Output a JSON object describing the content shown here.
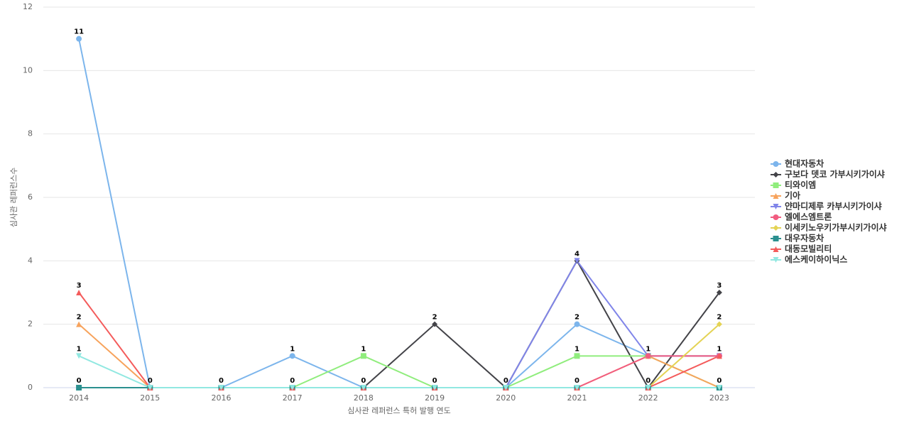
{
  "chart_data": {
    "type": "line",
    "x_label": "심사관 레퍼런스 특허 발행 연도",
    "y_label": "심사관 레퍼런스수",
    "categories": [
      "2014",
      "2015",
      "2016",
      "2017",
      "2018",
      "2019",
      "2020",
      "2021",
      "2022",
      "2023"
    ],
    "ylim": [
      0,
      12
    ],
    "yticks": [
      0,
      2,
      4,
      6,
      8,
      10,
      12
    ],
    "grid": true,
    "legend": "right",
    "series": [
      {
        "name": "현대자동차",
        "color": "#7cb5ec",
        "marker": "circle",
        "values": [
          11,
          0,
          0,
          1,
          0,
          0,
          0,
          2,
          1,
          1
        ]
      },
      {
        "name": "구보다 뎃코 가부시키가이샤",
        "color": "#434348",
        "marker": "diamond",
        "values": [
          null,
          null,
          null,
          null,
          0,
          2,
          0,
          4,
          0,
          3
        ]
      },
      {
        "name": "티와이엠",
        "color": "#90ed7d",
        "marker": "square",
        "values": [
          null,
          null,
          null,
          0,
          1,
          0,
          0,
          1,
          1,
          0
        ]
      },
      {
        "name": "기아",
        "color": "#f7a35c",
        "marker": "triangle",
        "values": [
          2,
          0,
          0,
          0,
          0,
          0,
          0,
          0,
          1,
          0
        ]
      },
      {
        "name": "얀마디제루 카부시키가이샤",
        "color": "#8085e9",
        "marker": "triangle-down",
        "values": [
          null,
          null,
          null,
          null,
          null,
          null,
          0,
          4,
          1,
          1
        ]
      },
      {
        "name": "엘에스엠트론",
        "color": "#f15c80",
        "marker": "circle",
        "values": [
          null,
          null,
          null,
          null,
          null,
          null,
          null,
          0,
          1,
          1
        ]
      },
      {
        "name": "이세키노우키가부시키가이샤",
        "color": "#e4d354",
        "marker": "diamond",
        "values": [
          null,
          null,
          null,
          null,
          null,
          null,
          null,
          null,
          0,
          2
        ]
      },
      {
        "name": "대우자동차",
        "color": "#2b908f",
        "marker": "square",
        "values": [
          0,
          0,
          0,
          0,
          0,
          0,
          0,
          0,
          0,
          0
        ]
      },
      {
        "name": "대동모빌리티",
        "color": "#f45b5b",
        "marker": "triangle",
        "values": [
          3,
          0,
          0,
          0,
          0,
          0,
          0,
          0,
          0,
          1
        ]
      },
      {
        "name": "에스케이하이닉스",
        "color": "#91e8e1",
        "marker": "triangle-down",
        "values": [
          1,
          0,
          0,
          0,
          0,
          0,
          0,
          0,
          0,
          0
        ]
      }
    ]
  }
}
